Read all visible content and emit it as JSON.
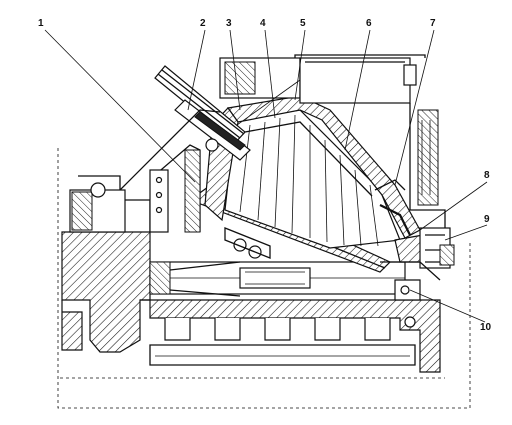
{
  "callouts": [
    {
      "label": "1"
    },
    {
      "label": "2"
    },
    {
      "label": "3"
    },
    {
      "label": "4"
    },
    {
      "label": "5"
    },
    {
      "label": "6"
    },
    {
      "label": "7"
    },
    {
      "label": "8"
    },
    {
      "label": "9"
    },
    {
      "label": "10"
    }
  ]
}
